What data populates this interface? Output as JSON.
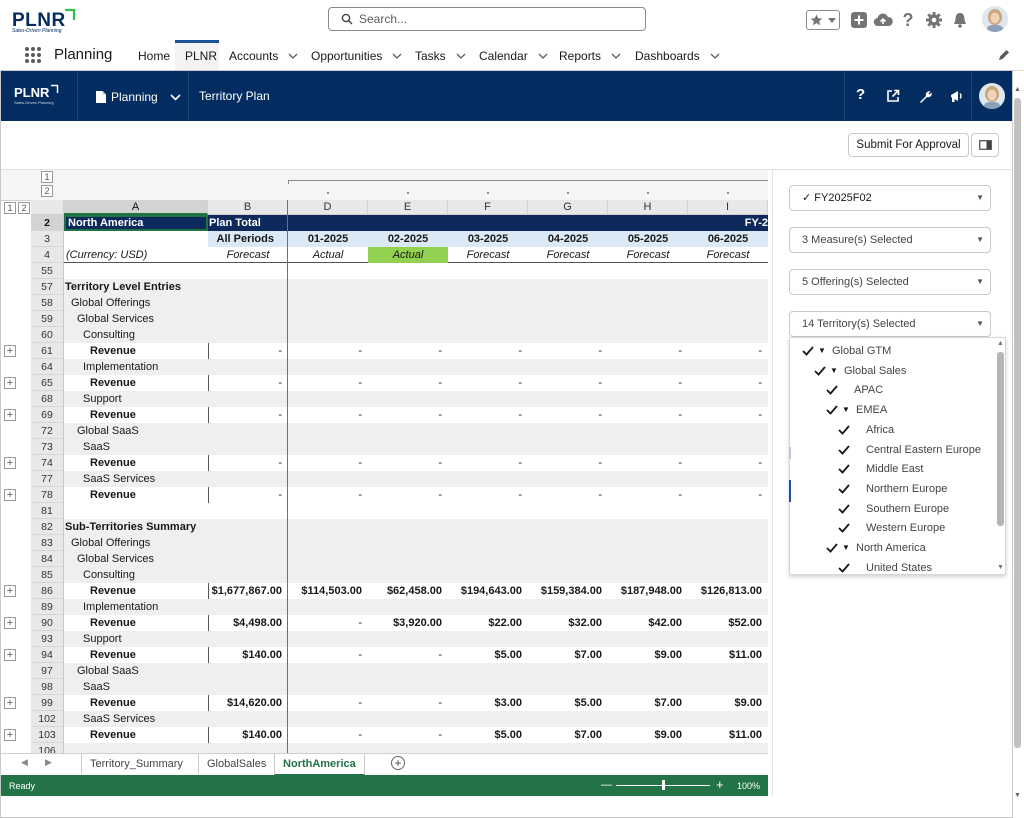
{
  "topbar": {
    "logo_text": "PLNR",
    "logo_tagline": "Sales-Driven Planning",
    "search_placeholder": "Search..."
  },
  "nav": {
    "app_name": "Planning",
    "items": [
      {
        "label": "Home",
        "dropdown": false
      },
      {
        "label": "PLNR",
        "dropdown": false,
        "active": true
      },
      {
        "label": "Accounts",
        "dropdown": true
      },
      {
        "label": "Opportunities",
        "dropdown": true
      },
      {
        "label": "Tasks",
        "dropdown": true
      },
      {
        "label": "Calendar",
        "dropdown": true
      },
      {
        "label": "Reports",
        "dropdown": true
      },
      {
        "label": "Dashboards",
        "dropdown": true
      }
    ]
  },
  "app_header": {
    "logo_text": "PLNR",
    "logo_tagline": "Sales-Driven Planning",
    "menu_label": "Planning",
    "page_title": "Territory Plan",
    "help_glyph": "?"
  },
  "toolbar": {
    "submit_label": "Submit For Approval"
  },
  "sheet": {
    "columns": [
      "A",
      "B",
      "D",
      "E",
      "F",
      "G",
      "H",
      "I"
    ],
    "outline_levels": [
      "1",
      "2"
    ],
    "header_rows": {
      "region": "North America",
      "plan_total": "Plan Total",
      "fy_label": "FY-2",
      "all_periods": "All Periods",
      "periods": [
        "01-2025",
        "02-2025",
        "03-2025",
        "04-2025",
        "05-2025",
        "06-2025"
      ],
      "currency": "(Currency: USD)",
      "types": [
        "Forecast",
        "Actual",
        "Actual",
        "Forecast",
        "Forecast",
        "Forecast",
        "Forecast"
      ]
    },
    "rows": [
      {
        "n": "55",
        "label": "",
        "indent": 0,
        "bold": false,
        "values": []
      },
      {
        "n": "57",
        "label": "Territory Level Entries",
        "indent": 0,
        "bold": true,
        "values": []
      },
      {
        "n": "58",
        "label": "Global Offerings",
        "indent": 1,
        "bold": false,
        "values": []
      },
      {
        "n": "59",
        "label": "Global Services",
        "indent": 2,
        "bold": false,
        "values": []
      },
      {
        "n": "60",
        "label": "Consulting",
        "indent": 3,
        "bold": false,
        "values": []
      },
      {
        "n": "61",
        "label": "Revenue",
        "indent": 4,
        "bold": true,
        "plus": true,
        "values": [
          "-",
          "-",
          "-",
          "-",
          "-",
          "-",
          "-"
        ]
      },
      {
        "n": "64",
        "label": "Implementation",
        "indent": 3,
        "bold": false,
        "values": []
      },
      {
        "n": "65",
        "label": "Revenue",
        "indent": 4,
        "bold": true,
        "plus": true,
        "values": [
          "-",
          "-",
          "-",
          "-",
          "-",
          "-",
          "-"
        ]
      },
      {
        "n": "68",
        "label": "Support",
        "indent": 3,
        "bold": false,
        "values": []
      },
      {
        "n": "69",
        "label": "Revenue",
        "indent": 4,
        "bold": true,
        "plus": true,
        "values": [
          "-",
          "-",
          "-",
          "-",
          "-",
          "-",
          "-"
        ]
      },
      {
        "n": "72",
        "label": "Global SaaS",
        "indent": 2,
        "bold": false,
        "values": []
      },
      {
        "n": "73",
        "label": "SaaS",
        "indent": 3,
        "bold": false,
        "values": []
      },
      {
        "n": "74",
        "label": "Revenue",
        "indent": 4,
        "bold": true,
        "plus": true,
        "values": [
          "-",
          "-",
          "-",
          "-",
          "-",
          "-",
          "-"
        ]
      },
      {
        "n": "77",
        "label": "SaaS Services",
        "indent": 3,
        "bold": false,
        "values": []
      },
      {
        "n": "78",
        "label": "Revenue",
        "indent": 4,
        "bold": true,
        "plus": true,
        "values": [
          "-",
          "-",
          "-",
          "-",
          "-",
          "-",
          "-"
        ]
      },
      {
        "n": "81",
        "label": "",
        "indent": 0,
        "bold": false,
        "values": []
      },
      {
        "n": "82",
        "label": "Sub-Territories Summary",
        "indent": 0,
        "bold": true,
        "values": []
      },
      {
        "n": "83",
        "label": "Global Offerings",
        "indent": 1,
        "bold": false,
        "values": []
      },
      {
        "n": "84",
        "label": "Global Services",
        "indent": 2,
        "bold": false,
        "values": []
      },
      {
        "n": "85",
        "label": "Consulting",
        "indent": 3,
        "bold": false,
        "values": []
      },
      {
        "n": "86",
        "label": "Revenue",
        "indent": 4,
        "bold": true,
        "plus": true,
        "values": [
          "$1,677,867.00",
          "$114,503.00",
          "$62,458.00",
          "$194,643.00",
          "$159,384.00",
          "$187,948.00",
          "$126,813.00"
        ]
      },
      {
        "n": "89",
        "label": "Implementation",
        "indent": 3,
        "bold": false,
        "values": []
      },
      {
        "n": "90",
        "label": "Revenue",
        "indent": 4,
        "bold": true,
        "plus": true,
        "values": [
          "$4,498.00",
          "-",
          "$3,920.00",
          "$22.00",
          "$32.00",
          "$42.00",
          "$52.00"
        ]
      },
      {
        "n": "93",
        "label": "Support",
        "indent": 3,
        "bold": false,
        "values": []
      },
      {
        "n": "94",
        "label": "Revenue",
        "indent": 4,
        "bold": true,
        "plus": true,
        "values": [
          "$140.00",
          "-",
          "-",
          "$5.00",
          "$7.00",
          "$9.00",
          "$11.00"
        ]
      },
      {
        "n": "97",
        "label": "Global SaaS",
        "indent": 2,
        "bold": false,
        "values": []
      },
      {
        "n": "98",
        "label": "SaaS",
        "indent": 3,
        "bold": false,
        "values": []
      },
      {
        "n": "99",
        "label": "Revenue",
        "indent": 4,
        "bold": true,
        "plus": true,
        "values": [
          "$14,620.00",
          "-",
          "-",
          "$3.00",
          "$5.00",
          "$7.00",
          "$9.00"
        ]
      },
      {
        "n": "102",
        "label": "SaaS Services",
        "indent": 3,
        "bold": false,
        "values": []
      },
      {
        "n": "103",
        "label": "Revenue",
        "indent": 4,
        "bold": true,
        "plus": true,
        "values": [
          "$140.00",
          "-",
          "-",
          "$5.00",
          "$7.00",
          "$9.00",
          "$11.00"
        ]
      },
      {
        "n": "106",
        "label": "",
        "indent": 0,
        "bold": false,
        "values": []
      }
    ]
  },
  "sheet_tabs": {
    "tabs": [
      "Territory_Summary",
      "GlobalSales",
      "NorthAmerica"
    ],
    "active": "NorthAmerica"
  },
  "statusbar": {
    "status": "Ready",
    "zoom": "100%",
    "zoom_level": 0.5
  },
  "filters": {
    "fiscal_period": "✓ FY2025F02",
    "measures": "3 Measure(s) Selected",
    "offerings": "5 Offering(s) Selected",
    "territories": "14 Territory(s) Selected"
  },
  "territory_tree": [
    {
      "label": "Global GTM",
      "level": 0,
      "expandable": true,
      "checked": true
    },
    {
      "label": "Global Sales",
      "level": 1,
      "expandable": true,
      "checked": true
    },
    {
      "label": "APAC",
      "level": 2,
      "expandable": false,
      "checked": true
    },
    {
      "label": "EMEA",
      "level": 2,
      "expandable": true,
      "checked": true
    },
    {
      "label": "Africa",
      "level": 3,
      "expandable": false,
      "checked": true
    },
    {
      "label": "Central Eastern Europe",
      "level": 3,
      "expandable": false,
      "checked": true
    },
    {
      "label": "Middle East",
      "level": 3,
      "expandable": false,
      "checked": true
    },
    {
      "label": "Northern Europe",
      "level": 3,
      "expandable": false,
      "checked": true
    },
    {
      "label": "Southern Europe",
      "level": 3,
      "expandable": false,
      "checked": true
    },
    {
      "label": "Western Europe",
      "level": 3,
      "expandable": false,
      "checked": true
    },
    {
      "label": "North America",
      "level": 2,
      "expandable": true,
      "checked": true
    },
    {
      "label": "United States",
      "level": 3,
      "expandable": false,
      "checked": true
    }
  ],
  "colors": {
    "brand_navy": "#032d60",
    "region_header": "#0e2a5c",
    "period_header": "#dbe8f6",
    "actual_highlight": "#92d050",
    "status_green": "#227447",
    "logo_green": "#2ebf4f"
  }
}
